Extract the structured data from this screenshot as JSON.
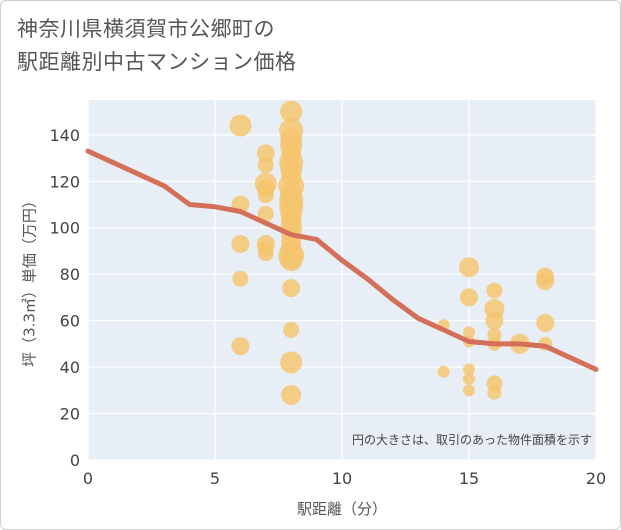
{
  "title_line1": "神奈川県横須賀市公郷町の",
  "title_line2": "駅距離別中古マンション価格",
  "chart_data": {
    "type": "scatter",
    "xlabel": "駅距離（分）",
    "ylabel": "坪（3.3㎡）単価（万円）",
    "xlim": [
      0,
      20
    ],
    "ylim": [
      0,
      155
    ],
    "xticks": [
      0,
      5,
      10,
      15,
      20
    ],
    "yticks": [
      0,
      20,
      40,
      60,
      80,
      100,
      120,
      140
    ],
    "note": "円の大きさは、取引のあった物件面積を示す",
    "bubble_color": "#f5c46e",
    "line_color": "#d4705a",
    "points": [
      {
        "x": 6,
        "y": 144,
        "s": 11
      },
      {
        "x": 6,
        "y": 110,
        "s": 9
      },
      {
        "x": 6,
        "y": 93,
        "s": 9
      },
      {
        "x": 6,
        "y": 78,
        "s": 8
      },
      {
        "x": 6,
        "y": 49,
        "s": 9
      },
      {
        "x": 7,
        "y": 132,
        "s": 9
      },
      {
        "x": 7,
        "y": 127,
        "s": 8
      },
      {
        "x": 7,
        "y": 119,
        "s": 11
      },
      {
        "x": 7,
        "y": 117,
        "s": 9
      },
      {
        "x": 7,
        "y": 114,
        "s": 8
      },
      {
        "x": 7,
        "y": 106,
        "s": 8
      },
      {
        "x": 7,
        "y": 93,
        "s": 9
      },
      {
        "x": 7,
        "y": 91,
        "s": 8
      },
      {
        "x": 7,
        "y": 89,
        "s": 8
      },
      {
        "x": 8,
        "y": 150,
        "s": 11
      },
      {
        "x": 8,
        "y": 142,
        "s": 12
      },
      {
        "x": 8,
        "y": 138,
        "s": 11
      },
      {
        "x": 8,
        "y": 135,
        "s": 11
      },
      {
        "x": 8,
        "y": 132,
        "s": 10
      },
      {
        "x": 8,
        "y": 128,
        "s": 12
      },
      {
        "x": 8,
        "y": 125,
        "s": 11
      },
      {
        "x": 8,
        "y": 122,
        "s": 10
      },
      {
        "x": 8,
        "y": 118,
        "s": 13
      },
      {
        "x": 8,
        "y": 115,
        "s": 11
      },
      {
        "x": 8,
        "y": 112,
        "s": 12
      },
      {
        "x": 8,
        "y": 109,
        "s": 12
      },
      {
        "x": 8,
        "y": 106,
        "s": 11
      },
      {
        "x": 8,
        "y": 103,
        "s": 10
      },
      {
        "x": 8,
        "y": 100,
        "s": 11
      },
      {
        "x": 8,
        "y": 97,
        "s": 10
      },
      {
        "x": 8,
        "y": 94,
        "s": 10
      },
      {
        "x": 8,
        "y": 90,
        "s": 11
      },
      {
        "x": 8,
        "y": 88,
        "s": 13
      },
      {
        "x": 8,
        "y": 86,
        "s": 11
      },
      {
        "x": 8,
        "y": 74,
        "s": 9
      },
      {
        "x": 8,
        "y": 56,
        "s": 8
      },
      {
        "x": 8,
        "y": 42,
        "s": 11
      },
      {
        "x": 8,
        "y": 28,
        "s": 10
      },
      {
        "x": 14,
        "y": 58,
        "s": 6
      },
      {
        "x": 14,
        "y": 38,
        "s": 6
      },
      {
        "x": 15,
        "y": 83,
        "s": 10
      },
      {
        "x": 15,
        "y": 70,
        "s": 9
      },
      {
        "x": 15,
        "y": 55,
        "s": 6
      },
      {
        "x": 15,
        "y": 51,
        "s": 6
      },
      {
        "x": 15,
        "y": 39,
        "s": 6
      },
      {
        "x": 15,
        "y": 35,
        "s": 6
      },
      {
        "x": 15,
        "y": 30,
        "s": 6
      },
      {
        "x": 16,
        "y": 73,
        "s": 8
      },
      {
        "x": 16,
        "y": 65,
        "s": 10
      },
      {
        "x": 16,
        "y": 60,
        "s": 9
      },
      {
        "x": 16,
        "y": 54,
        "s": 7
      },
      {
        "x": 16,
        "y": 50,
        "s": 7
      },
      {
        "x": 16,
        "y": 33,
        "s": 8
      },
      {
        "x": 16,
        "y": 29,
        "s": 7
      },
      {
        "x": 17,
        "y": 50,
        "s": 10
      },
      {
        "x": 18,
        "y": 79,
        "s": 9
      },
      {
        "x": 18,
        "y": 77,
        "s": 9
      },
      {
        "x": 18,
        "y": 59,
        "s": 9
      },
      {
        "x": 18,
        "y": 50,
        "s": 7
      }
    ],
    "trend_line": {
      "x": [
        0,
        1,
        2,
        3,
        4,
        5,
        6,
        7,
        8,
        9,
        10,
        11,
        12,
        13,
        14,
        15,
        16,
        17,
        18,
        19,
        20
      ],
      "y": [
        133,
        128,
        123,
        118,
        110,
        109,
        107,
        102,
        97,
        95,
        86,
        78,
        69,
        61,
        56,
        51,
        50,
        50,
        49,
        44,
        39
      ]
    }
  }
}
